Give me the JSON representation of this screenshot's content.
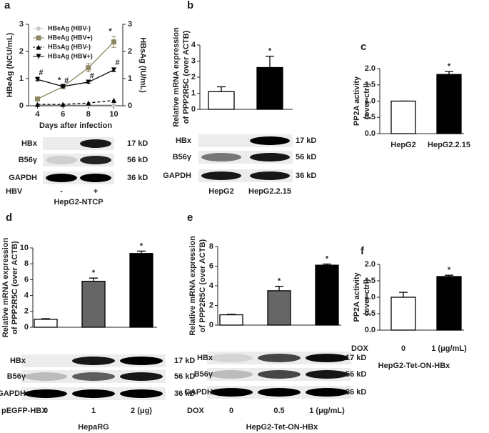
{
  "panels": [
    "a",
    "b",
    "c",
    "d",
    "e",
    "f"
  ],
  "chart_data": [
    {
      "type": "line",
      "x_label": "Days after infection",
      "y_label": "HBeAg (NCU/mL)",
      "y2_label": "HBsAg (IU/mL)",
      "x": [
        4,
        6,
        8,
        10
      ],
      "xlim": [
        3.3,
        10.7
      ],
      "xticks": [
        4,
        6,
        8,
        10
      ],
      "ylim": [
        0,
        3
      ],
      "yticks": [
        0,
        1,
        2,
        3
      ],
      "y2lim": [
        0,
        3
      ],
      "y2ticks": [
        0,
        1,
        2,
        3
      ],
      "legend": "upper left",
      "series": [
        {
          "name": "HBeAg (HBV-)",
          "color": "#c8c8c8",
          "marker": "circle",
          "values": [
            0.03,
            0.03,
            0.03,
            0.03
          ]
        },
        {
          "name": "HBeAg (HBV+)",
          "color": "#8c8660",
          "marker": "square",
          "values": [
            0.25,
            0.7,
            1.4,
            2.35
          ],
          "errors": [
            0.05,
            0.05,
            0.15,
            0.2
          ],
          "annotations": [
            null,
            "*",
            "*",
            "*"
          ]
        },
        {
          "name": "HBsAg (HBV-)",
          "color": "#000000",
          "marker": "triangle",
          "dash": true,
          "axis": "y2",
          "values": [
            0.05,
            0.05,
            0.1,
            0.2
          ]
        },
        {
          "name": "HBsAg (HBV+)",
          "color": "#000000",
          "marker": "triangle-down",
          "axis": "y2",
          "values": [
            0.97,
            0.71,
            0.87,
            1.32
          ],
          "errors": [
            0.05,
            0.03,
            0.04,
            0.07
          ],
          "annotations": [
            "#",
            "#",
            "#",
            "#"
          ]
        }
      ]
    },
    {
      "type": "bar",
      "y_label": [
        "Relative mRNA expression",
        "of PPP2R5C (over ACTB)"
      ],
      "categories": [
        "HepG2",
        "HepG2.2.15"
      ],
      "values": [
        1.1,
        2.6
      ],
      "errors": [
        0.3,
        0.7
      ],
      "annotations": [
        null,
        "*"
      ],
      "colors": [
        "#ffffff",
        "#000000"
      ],
      "ylim": [
        0,
        4
      ],
      "yticks": [
        0,
        1,
        2,
        3,
        4
      ]
    },
    {
      "type": "bar",
      "y_label": [
        "PP2A activity",
        "(over ctrl)"
      ],
      "categories": [
        "HepG2",
        "HepG2.2.15"
      ],
      "values": [
        1.0,
        1.82
      ],
      "errors": [
        0,
        0.09
      ],
      "annotations": [
        null,
        "*"
      ],
      "colors": [
        "#ffffff",
        "#000000"
      ],
      "ylim": [
        0,
        2
      ],
      "yticks": [
        {
          "value": 0,
          "label": "0.0"
        },
        0.5,
        {
          "value": 1,
          "label": "1.0"
        },
        1.5,
        {
          "value": 2,
          "label": "2.0"
        }
      ]
    },
    {
      "type": "bar",
      "y_label": [
        "Relative mRNA expression",
        "of PPP2R5C (over ACTB)"
      ],
      "x_label": "pEGFP-HBX",
      "group": "HepaRG",
      "categories": [
        "0",
        "1",
        "2 (μg)"
      ],
      "values": [
        1.0,
        5.8,
        9.3
      ],
      "errors": [
        0.08,
        0.4,
        0.3
      ],
      "annotations": [
        null,
        "*",
        "*"
      ],
      "colors": [
        "#ffffff",
        "#666666",
        "#000000"
      ],
      "ylim": [
        0,
        10
      ],
      "yticks": [
        0,
        2,
        4,
        6,
        8,
        10
      ]
    },
    {
      "type": "bar",
      "y_label": [
        "Relative mRNA expression",
        "of PPP2R5C (over ACTB)"
      ],
      "x_label": "DOX",
      "group": "HepG2-Tet-ON-HBx",
      "categories": [
        "0",
        "0.5",
        "1 (μg/mL)"
      ],
      "values": [
        1.05,
        3.5,
        6.1
      ],
      "errors": [
        0.05,
        0.45,
        0.12
      ],
      "annotations": [
        null,
        "*",
        "*"
      ],
      "colors": [
        "#ffffff",
        "#666666",
        "#000000"
      ],
      "ylim": [
        0,
        8
      ],
      "yticks": [
        0,
        2,
        4,
        6,
        8
      ]
    },
    {
      "type": "bar",
      "y_label": [
        "PP2A activity",
        "(over ctrl)"
      ],
      "x_label": "DOX",
      "group": "HepG2-Tet-ON-HBx",
      "categories": [
        "0",
        "1 (μg/mL)"
      ],
      "values": [
        1.0,
        1.63
      ],
      "errors": [
        0.15,
        0.04
      ],
      "annotations": [
        null,
        "*"
      ],
      "colors": [
        "#ffffff",
        "#000000"
      ],
      "ylim": [
        0,
        2
      ],
      "yticks": [
        {
          "value": 0,
          "label": "0.0"
        },
        0.5,
        {
          "value": 1,
          "label": "1.0"
        },
        1.5,
        {
          "value": 2,
          "label": "2.0"
        }
      ]
    }
  ],
  "blots": [
    {
      "rows": [
        "HBx",
        "B56γ",
        "GAPDH"
      ],
      "sizes": [
        "17 kD",
        "56 kD",
        "36 kD"
      ],
      "lane_label": "HBV",
      "lanes": [
        "-",
        "+"
      ],
      "group": "HepG2-NTCP"
    },
    {
      "rows": [
        "HBx",
        "B56γ",
        "GAPDH"
      ],
      "sizes": [
        "17 kD",
        "56 kD",
        "36 kD"
      ]
    },
    {
      "rows": [
        "HBx",
        "B56γ",
        "GAPDH"
      ],
      "sizes": [
        "17 kD",
        "56 kD",
        "36 kD"
      ]
    },
    {
      "rows": [
        "HBx",
        "B56γ",
        "GAPDH"
      ],
      "sizes": [
        "17 kD",
        "56 kD",
        "36 kD"
      ]
    }
  ]
}
